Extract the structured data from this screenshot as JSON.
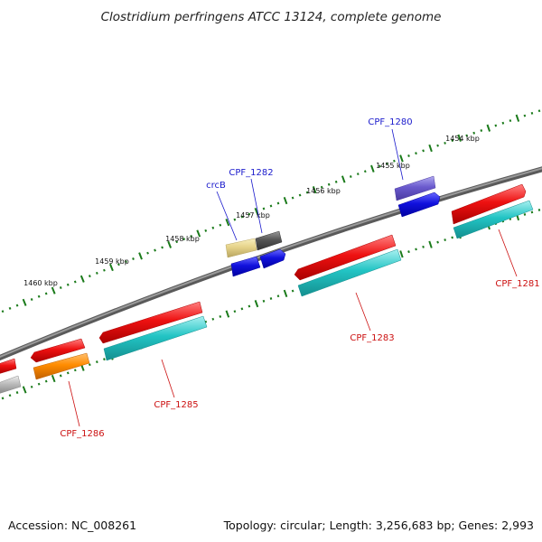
{
  "title": "Clostridium perfringens ATCC 13124, complete genome",
  "footer": {
    "accession": "Accession: NC_008261",
    "topology": "Topology: circular; Length: 3,256,683 bp; Genes: 2,993"
  },
  "scale_labels": [
    "1454 kbp",
    "1455 kbp",
    "1456 kbp",
    "1457 kbp",
    "1458 kbp",
    "1459 kbp",
    "1460 kbp"
  ],
  "genes": {
    "CPF_1280": "CPF_1280",
    "CPF_1282": "CPF_1282",
    "crcB": "crcB",
    "CPF_1281": "CPF_1281",
    "CPF_1283": "CPF_1283",
    "CPF_1285": "CPF_1285",
    "CPF_1286": "CPF_1286"
  },
  "colors": {
    "backbone": "#777777",
    "scale_ticks": "#1a7a1a",
    "red_gene": "#ee1111",
    "cyan_gene": "#22c4c4",
    "blue_gene": "#1111dd",
    "purple_gene": "#6a5acd",
    "orange_gene": "#ff8c00",
    "khaki_gene": "#e6d38a",
    "dark_gene": "#555555",
    "gray_gene": "#bbbbbb",
    "label_blue": "#1a1acc",
    "label_red": "#cc1111"
  }
}
